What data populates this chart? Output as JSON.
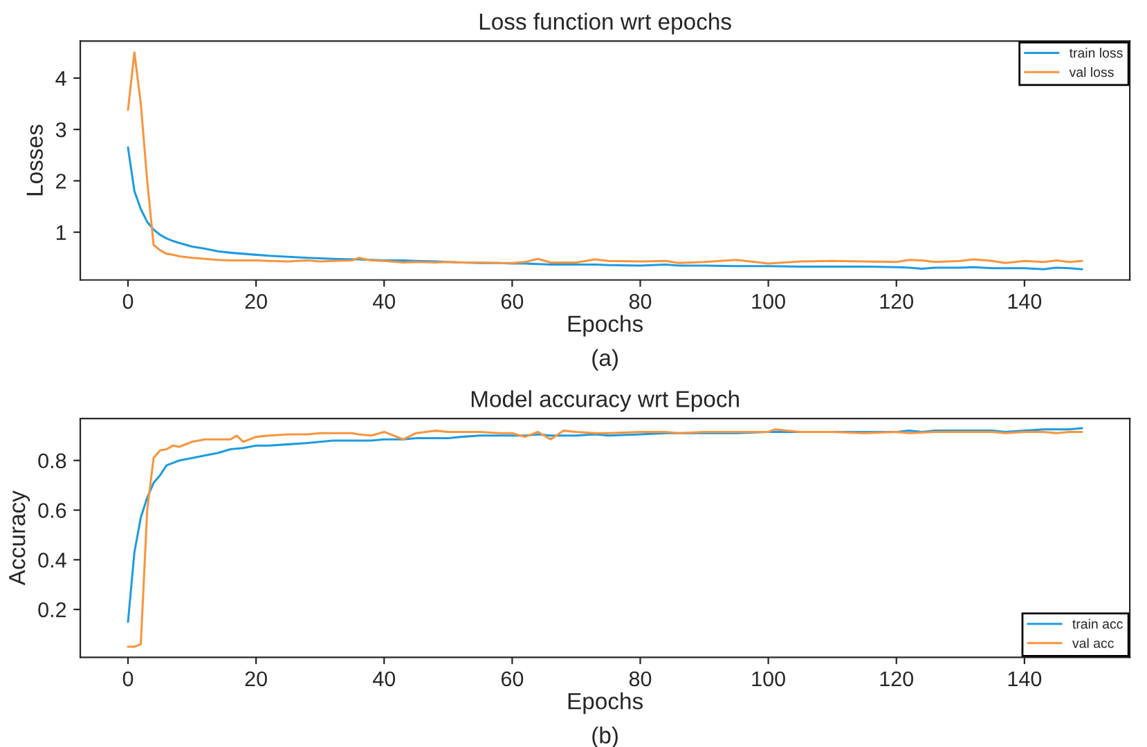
{
  "chart_data": [
    {
      "type": "line",
      "title": "Loss function wrt epochs",
      "xlabel": "Epochs",
      "ylabel": "Losses",
      "annotations": [
        "(a)"
      ],
      "xlim": [
        -7.45,
        156.45
      ],
      "xticks": [
        0,
        20,
        40,
        60,
        80,
        100,
        120,
        140
      ],
      "ylim": [
        0.07,
        4.72
      ],
      "yticks": [
        1,
        2,
        3,
        4
      ],
      "grid": false,
      "legend": "top right",
      "marker": "none",
      "line_style": "solid",
      "series": [
        {
          "name": "train loss",
          "color": "#1e9be0",
          "x": [
            0,
            1,
            2,
            3,
            4,
            5,
            6,
            7,
            8,
            10,
            12,
            14,
            16,
            18,
            20,
            22,
            25,
            28,
            30,
            32,
            35,
            36,
            38,
            40,
            43,
            45,
            48,
            50,
            52,
            55,
            58,
            60,
            62,
            64,
            66,
            70,
            73,
            75,
            80,
            84,
            86,
            90,
            95,
            100,
            105,
            110,
            115,
            120,
            122,
            124,
            126,
            130,
            132,
            135,
            137,
            140,
            143,
            145,
            147,
            149
          ],
          "values": [
            2.65,
            1.8,
            1.45,
            1.2,
            1.05,
            0.95,
            0.88,
            0.83,
            0.79,
            0.72,
            0.68,
            0.63,
            0.6,
            0.58,
            0.56,
            0.54,
            0.52,
            0.5,
            0.49,
            0.48,
            0.47,
            0.47,
            0.46,
            0.45,
            0.45,
            0.44,
            0.43,
            0.42,
            0.41,
            0.4,
            0.4,
            0.39,
            0.39,
            0.38,
            0.37,
            0.37,
            0.37,
            0.36,
            0.35,
            0.37,
            0.35,
            0.35,
            0.34,
            0.34,
            0.33,
            0.33,
            0.33,
            0.32,
            0.31,
            0.29,
            0.31,
            0.31,
            0.32,
            0.3,
            0.3,
            0.3,
            0.28,
            0.31,
            0.3,
            0.28
          ]
        },
        {
          "name": "val loss",
          "color": "#f7953f",
          "x": [
            0,
            1,
            2,
            3,
            4,
            5,
            6,
            7,
            8,
            10,
            12,
            14,
            16,
            18,
            20,
            22,
            25,
            28,
            30,
            32,
            35,
            36,
            38,
            40,
            43,
            45,
            48,
            50,
            52,
            55,
            58,
            60,
            62,
            64,
            66,
            70,
            73,
            75,
            80,
            84,
            86,
            90,
            95,
            100,
            105,
            110,
            115,
            120,
            122,
            124,
            126,
            130,
            132,
            135,
            137,
            140,
            143,
            145,
            147,
            149
          ],
          "values": [
            3.38,
            4.5,
            3.5,
            2.0,
            0.75,
            0.65,
            0.58,
            0.56,
            0.53,
            0.5,
            0.48,
            0.46,
            0.45,
            0.45,
            0.45,
            0.44,
            0.43,
            0.45,
            0.43,
            0.44,
            0.45,
            0.5,
            0.45,
            0.44,
            0.41,
            0.42,
            0.41,
            0.42,
            0.41,
            0.41,
            0.4,
            0.4,
            0.42,
            0.48,
            0.41,
            0.41,
            0.47,
            0.44,
            0.43,
            0.44,
            0.4,
            0.42,
            0.46,
            0.39,
            0.43,
            0.44,
            0.43,
            0.42,
            0.46,
            0.45,
            0.42,
            0.44,
            0.47,
            0.44,
            0.4,
            0.44,
            0.42,
            0.45,
            0.42,
            0.44
          ]
        }
      ]
    },
    {
      "type": "line",
      "title": "Model accuracy wrt Epoch",
      "xlabel": "Epochs",
      "ylabel": "Accuracy",
      "annotations": [
        "(b)"
      ],
      "xlim": [
        -7.45,
        156.45
      ],
      "xticks": [
        0,
        20,
        40,
        60,
        80,
        100,
        120,
        140
      ],
      "ylim": [
        0.007,
        0.969
      ],
      "yticks": [
        0.2,
        0.4,
        0.6,
        0.8
      ],
      "grid": false,
      "legend": "bottom right",
      "marker": "none",
      "line_style": "solid",
      "series": [
        {
          "name": "train acc",
          "color": "#1e9be0",
          "x": [
            0,
            1,
            2,
            3,
            4,
            5,
            6,
            7,
            8,
            10,
            12,
            14,
            16,
            18,
            20,
            22,
            25,
            28,
            30,
            32,
            35,
            36,
            38,
            40,
            43,
            45,
            48,
            50,
            52,
            55,
            58,
            60,
            62,
            64,
            66,
            70,
            73,
            75,
            80,
            84,
            86,
            90,
            95,
            100,
            105,
            110,
            115,
            120,
            122,
            124,
            126,
            130,
            132,
            135,
            137,
            140,
            143,
            145,
            147,
            149
          ],
          "values": [
            0.15,
            0.43,
            0.57,
            0.65,
            0.71,
            0.74,
            0.78,
            0.79,
            0.8,
            0.81,
            0.82,
            0.83,
            0.845,
            0.85,
            0.86,
            0.86,
            0.865,
            0.87,
            0.875,
            0.88,
            0.88,
            0.88,
            0.88,
            0.885,
            0.885,
            0.89,
            0.89,
            0.89,
            0.895,
            0.9,
            0.9,
            0.9,
            0.9,
            0.905,
            0.9,
            0.9,
            0.905,
            0.9,
            0.905,
            0.91,
            0.91,
            0.91,
            0.91,
            0.915,
            0.915,
            0.915,
            0.915,
            0.915,
            0.92,
            0.915,
            0.92,
            0.92,
            0.92,
            0.92,
            0.915,
            0.92,
            0.925,
            0.925,
            0.925,
            0.93
          ]
        },
        {
          "name": "val acc",
          "color": "#f7953f",
          "x": [
            0,
            1,
            2,
            3,
            4,
            5,
            6,
            7,
            8,
            10,
            12,
            14,
            16,
            17,
            18,
            20,
            22,
            25,
            28,
            30,
            32,
            35,
            36,
            38,
            40,
            43,
            45,
            48,
            50,
            52,
            55,
            58,
            60,
            62,
            64,
            66,
            68,
            70,
            73,
            75,
            80,
            84,
            86,
            90,
            95,
            100,
            101,
            105,
            110,
            115,
            120,
            122,
            126,
            130,
            132,
            135,
            137,
            140,
            143,
            145,
            147,
            149
          ],
          "values": [
            0.05,
            0.05,
            0.06,
            0.6,
            0.81,
            0.84,
            0.845,
            0.86,
            0.855,
            0.875,
            0.885,
            0.885,
            0.885,
            0.9,
            0.875,
            0.895,
            0.9,
            0.905,
            0.905,
            0.91,
            0.91,
            0.91,
            0.905,
            0.9,
            0.915,
            0.885,
            0.91,
            0.92,
            0.915,
            0.915,
            0.915,
            0.91,
            0.91,
            0.895,
            0.915,
            0.885,
            0.92,
            0.915,
            0.91,
            0.91,
            0.915,
            0.915,
            0.91,
            0.915,
            0.915,
            0.915,
            0.925,
            0.915,
            0.915,
            0.91,
            0.915,
            0.91,
            0.915,
            0.915,
            0.915,
            0.915,
            0.91,
            0.915,
            0.915,
            0.91,
            0.915,
            0.915
          ]
        }
      ]
    }
  ]
}
